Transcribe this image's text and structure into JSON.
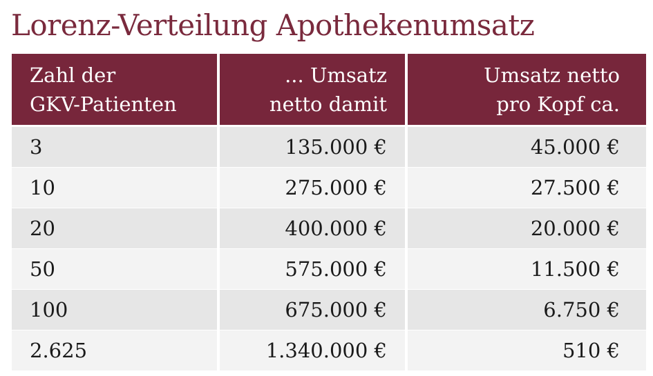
{
  "title": "Lorenz-Verteilung Apothekenumsatz",
  "colors": {
    "header_bg": "#77263b",
    "title_text": "#7a2a3d",
    "row_odd": "#e6e6e6",
    "row_even": "#f3f3f3"
  },
  "table": {
    "headers": [
      {
        "line1": "Zahl der",
        "line2": "GKV-Patienten"
      },
      {
        "line1": "... Umsatz",
        "line2": "netto damit"
      },
      {
        "line1": "Umsatz netto",
        "line2": "pro Kopf ca."
      }
    ],
    "rows": [
      [
        "3",
        "135.000 €",
        "45.000 €"
      ],
      [
        "10",
        "275.000 €",
        "27.500 €"
      ],
      [
        "20",
        "400.000 €",
        "20.000 €"
      ],
      [
        "50",
        "575.000 €",
        "11.500 €"
      ],
      [
        "100",
        "675.000 €",
        "6.750 €"
      ],
      [
        "2.625",
        "1.340.000 €",
        "510 €"
      ]
    ]
  }
}
